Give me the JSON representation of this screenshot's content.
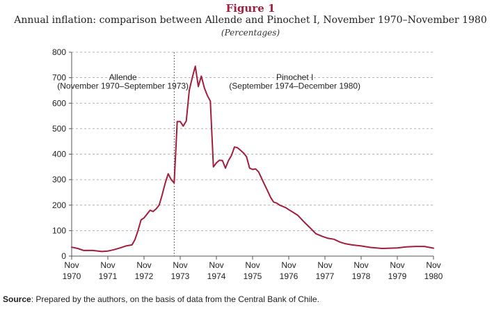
{
  "figure": {
    "label": "Figure 1",
    "title": "Annual inflation: comparison between Allende and Pinochet I, November 1970–November 1980",
    "subtitle": "(Percentages)"
  },
  "source": {
    "label": "Source",
    "text": ": Prepared by the authors, on the basis of data from the Central Bank of Chile."
  },
  "colors": {
    "line": "#a31d3c",
    "grid": "#9a9a9a",
    "axis": "#555555",
    "title": "#a31d3c"
  },
  "chart_data": {
    "type": "line",
    "ylim": [
      0,
      800
    ],
    "xlim": [
      "1970-11",
      "1980-11"
    ],
    "grid": "horizontal dashed",
    "y_ticks": [
      0,
      100,
      200,
      300,
      400,
      500,
      600,
      700,
      800
    ],
    "x_ticks": [
      {
        "month": "Nov",
        "year": "1970"
      },
      {
        "month": "Nov",
        "year": "1971"
      },
      {
        "month": "Nov",
        "year": "1972"
      },
      {
        "month": "Nov",
        "year": "1973"
      },
      {
        "month": "Nov",
        "year": "1974"
      },
      {
        "month": "Nov",
        "year": "1975"
      },
      {
        "month": "Nov",
        "year": "1976"
      },
      {
        "month": "Nov",
        "year": "1977"
      },
      {
        "month": "Nov",
        "year": "1978"
      },
      {
        "month": "Nov",
        "year": "1979"
      },
      {
        "month": "Nov",
        "year": "1980"
      }
    ],
    "divider": "1973-09",
    "annotations": [
      {
        "lines": [
          "Allende",
          "(November 1970–September 1973)"
        ]
      },
      {
        "lines": [
          "Pinochet I",
          "(September 1974–December 1980)"
        ]
      }
    ],
    "series": [
      {
        "values": [
          [
            "1970-11",
            35
          ],
          [
            "1971-01",
            30
          ],
          [
            "1971-03",
            22
          ],
          [
            "1971-06",
            22
          ],
          [
            "1971-09",
            18
          ],
          [
            "1971-11",
            20
          ],
          [
            "1972-01",
            25
          ],
          [
            "1972-03",
            32
          ],
          [
            "1972-05",
            40
          ],
          [
            "1972-07",
            44
          ],
          [
            "1972-08",
            65
          ],
          [
            "1972-09",
            100
          ],
          [
            "1972-10",
            142
          ],
          [
            "1972-11",
            150
          ],
          [
            "1972-12",
            165
          ],
          [
            "1973-01",
            180
          ],
          [
            "1973-02",
            175
          ],
          [
            "1973-03",
            185
          ],
          [
            "1973-04",
            200
          ],
          [
            "1973-05",
            240
          ],
          [
            "1973-06",
            285
          ],
          [
            "1973-07",
            323
          ],
          [
            "1973-08",
            300
          ],
          [
            "1973-09",
            287
          ],
          [
            "1973-10",
            528
          ],
          [
            "1973-11",
            528
          ],
          [
            "1973-12",
            510
          ],
          [
            "1974-01",
            530
          ],
          [
            "1974-02",
            650
          ],
          [
            "1974-03",
            700
          ],
          [
            "1974-04",
            745
          ],
          [
            "1974-05",
            665
          ],
          [
            "1974-06",
            706
          ],
          [
            "1974-07",
            660
          ],
          [
            "1974-08",
            630
          ],
          [
            "1974-09",
            608
          ],
          [
            "1974-10",
            350
          ],
          [
            "1974-11",
            366
          ],
          [
            "1974-12",
            376
          ],
          [
            "1975-01",
            375
          ],
          [
            "1975-02",
            345
          ],
          [
            "1975-03",
            375
          ],
          [
            "1975-04",
            395
          ],
          [
            "1975-05",
            428
          ],
          [
            "1975-06",
            425
          ],
          [
            "1975-07",
            415
          ],
          [
            "1975-08",
            405
          ],
          [
            "1975-09",
            390
          ],
          [
            "1975-10",
            345
          ],
          [
            "1975-11",
            340
          ],
          [
            "1975-12",
            342
          ],
          [
            "1976-01",
            330
          ],
          [
            "1976-02",
            305
          ],
          [
            "1976-03",
            280
          ],
          [
            "1976-04",
            255
          ],
          [
            "1976-05",
            230
          ],
          [
            "1976-06",
            212
          ],
          [
            "1976-07",
            208
          ],
          [
            "1976-08",
            200
          ],
          [
            "1976-09",
            195
          ],
          [
            "1976-10",
            190
          ],
          [
            "1976-11",
            182
          ],
          [
            "1976-12",
            175
          ],
          [
            "1977-02",
            160
          ],
          [
            "1977-04",
            135
          ],
          [
            "1977-06",
            112
          ],
          [
            "1977-08",
            88
          ],
          [
            "1977-10",
            78
          ],
          [
            "1977-12",
            70
          ],
          [
            "1978-02",
            66
          ],
          [
            "1978-04",
            55
          ],
          [
            "1978-06",
            48
          ],
          [
            "1978-08",
            44
          ],
          [
            "1978-11",
            40
          ],
          [
            "1979-02",
            34
          ],
          [
            "1979-06",
            30
          ],
          [
            "1979-11",
            32
          ],
          [
            "1980-02",
            36
          ],
          [
            "1980-05",
            38
          ],
          [
            "1980-08",
            38
          ],
          [
            "1980-11",
            31
          ]
        ]
      }
    ]
  }
}
